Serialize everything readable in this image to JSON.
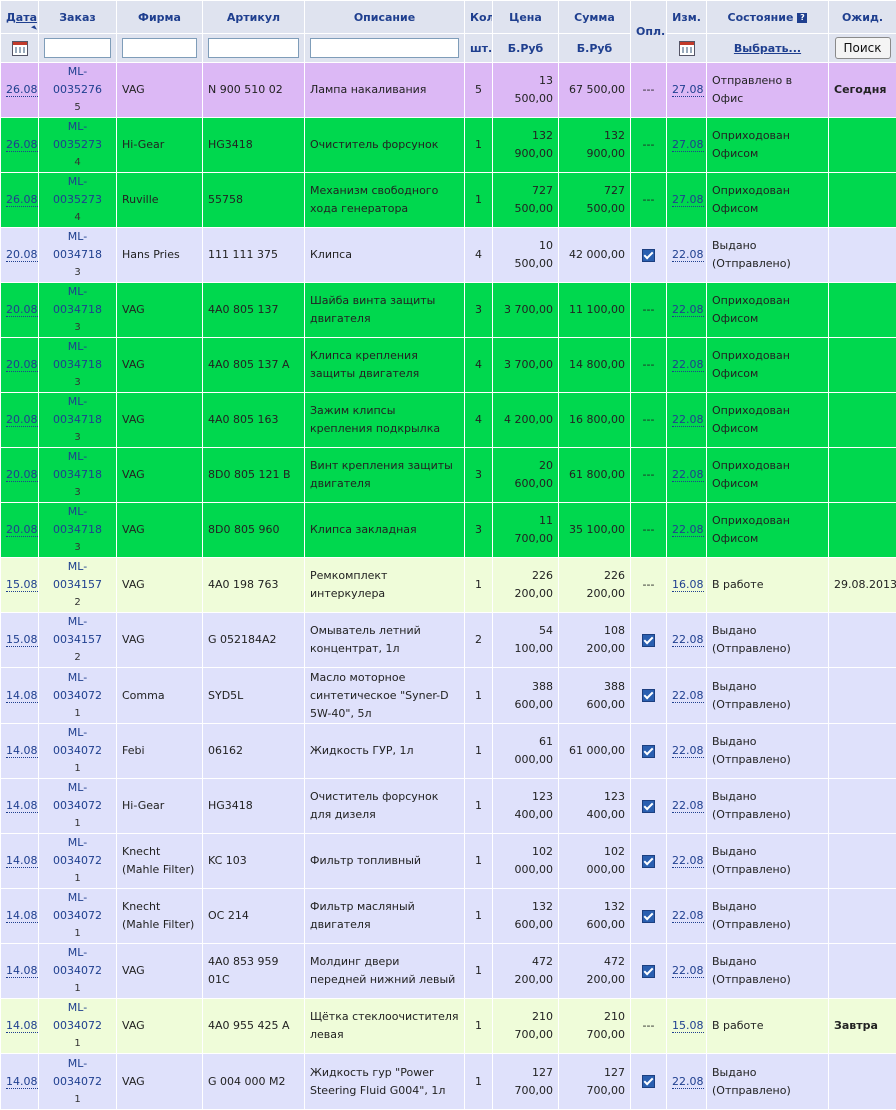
{
  "colors": {
    "header_bg": "#dfe3ef",
    "header_text": "#1f3f8f",
    "purple": "#dcb8f5",
    "green": "#00d84e",
    "lavender": "#dfe1fb",
    "pale": "#effcd9"
  },
  "header": {
    "date": "Дата",
    "order": "Заказ",
    "firm": "Фирма",
    "article": "Артикул",
    "description": "Описание",
    "qty": "Кол",
    "price": "Цена",
    "sum": "Сумма",
    "paid": "Опл.",
    "changed": "Изм.",
    "status": "Состояние",
    "expected": "Ожид.",
    "qty_unit": "шт.",
    "price_unit": "Б.Руб",
    "sum_unit": "Б.Руб",
    "status_choose": "Выбрать...",
    "search_button": "Поиск"
  },
  "filters": {
    "order": "",
    "firm": "",
    "article": "",
    "description": ""
  },
  "rows": [
    {
      "date": "26.08",
      "order": "ML-0035276",
      "suffix": "5",
      "firm": "VAG",
      "article": "N 900 510 02",
      "desc": "Лампа накаливания",
      "qty": "5",
      "price": "13 500,00",
      "sum": "67 500,00",
      "paid": "---",
      "changed": "27.08",
      "status": "Отправлено в Офис",
      "expected": "Сегодня",
      "color": "purple"
    },
    {
      "date": "26.08",
      "order": "ML-0035273",
      "suffix": "4",
      "firm": "Hi-Gear",
      "article": "HG3418",
      "desc": "Очиститель форсунок",
      "qty": "1",
      "price": "132 900,00",
      "sum": "132 900,00",
      "paid": "---",
      "changed": "27.08",
      "status": "Оприходован Офисом",
      "expected": "",
      "color": "green"
    },
    {
      "date": "26.08",
      "order": "ML-0035273",
      "suffix": "4",
      "firm": "Ruville",
      "article": "55758",
      "desc": "Механизм свободного хода генератора",
      "qty": "1",
      "price": "727 500,00",
      "sum": "727 500,00",
      "paid": "---",
      "changed": "27.08",
      "status": "Оприходован Офисом",
      "expected": "",
      "color": "green"
    },
    {
      "date": "20.08",
      "order": "ML-0034718",
      "suffix": "3",
      "firm": "Hans Pries",
      "article": "111 111 375",
      "desc": "Клипса",
      "qty": "4",
      "price": "10 500,00",
      "sum": "42 000,00",
      "paid": "check",
      "changed": "22.08",
      "status": "Выдано (Отправлено)",
      "expected": "",
      "color": "lav"
    },
    {
      "date": "20.08",
      "order": "ML-0034718",
      "suffix": "3",
      "firm": "VAG",
      "article": "4A0 805 137",
      "desc": "Шайба винта защиты двигателя",
      "qty": "3",
      "price": "3 700,00",
      "sum": "11 100,00",
      "paid": "---",
      "changed": "22.08",
      "status": "Оприходован Офисом",
      "expected": "",
      "color": "green"
    },
    {
      "date": "20.08",
      "order": "ML-0034718",
      "suffix": "3",
      "firm": "VAG",
      "article": "4A0 805 137 A",
      "desc": "Клипса крепления защиты двигателя",
      "qty": "4",
      "price": "3 700,00",
      "sum": "14 800,00",
      "paid": "---",
      "changed": "22.08",
      "status": "Оприходован Офисом",
      "expected": "",
      "color": "green"
    },
    {
      "date": "20.08",
      "order": "ML-0034718",
      "suffix": "3",
      "firm": "VAG",
      "article": "4A0 805 163",
      "desc": "Зажим клипсы крепления подкрылка",
      "qty": "4",
      "price": "4 200,00",
      "sum": "16 800,00",
      "paid": "---",
      "changed": "22.08",
      "status": "Оприходован Офисом",
      "expected": "",
      "color": "green"
    },
    {
      "date": "20.08",
      "order": "ML-0034718",
      "suffix": "3",
      "firm": "VAG",
      "article": "8D0 805 121 B",
      "desc": "Винт крепления защиты двигателя",
      "qty": "3",
      "price": "20 600,00",
      "sum": "61 800,00",
      "paid": "---",
      "changed": "22.08",
      "status": "Оприходован Офисом",
      "expected": "",
      "color": "green"
    },
    {
      "date": "20.08",
      "order": "ML-0034718",
      "suffix": "3",
      "firm": "VAG",
      "article": "8D0 805 960",
      "desc": "Клипса закладная",
      "qty": "3",
      "price": "11 700,00",
      "sum": "35 100,00",
      "paid": "---",
      "changed": "22.08",
      "status": "Оприходован Офисом",
      "expected": "",
      "color": "green"
    },
    {
      "date": "15.08",
      "order": "ML-0034157",
      "suffix": "2",
      "firm": "VAG",
      "article": "4A0 198 763",
      "desc": "Ремкомплект интеркулера",
      "qty": "1",
      "price": "226 200,00",
      "sum": "226 200,00",
      "paid": "---",
      "changed": "16.08",
      "status": "В работе",
      "expected": "29.08.2013",
      "color": "pale"
    },
    {
      "date": "15.08",
      "order": "ML-0034157",
      "suffix": "2",
      "firm": "VAG",
      "article": "G 052184A2",
      "desc": "Омыватель летний концентрат, 1л",
      "qty": "2",
      "price": "54 100,00",
      "sum": "108 200,00",
      "paid": "check",
      "changed": "22.08",
      "status": "Выдано (Отправлено)",
      "expected": "",
      "color": "lav"
    },
    {
      "date": "14.08",
      "order": "ML-0034072",
      "suffix": "1",
      "firm": "Comma",
      "article": "SYD5L",
      "desc": "Масло моторное синтетическое \"Syner-D 5W-40\", 5л",
      "qty": "1",
      "price": "388 600,00",
      "sum": "388 600,00",
      "paid": "check",
      "changed": "22.08",
      "status": "Выдано (Отправлено)",
      "expected": "",
      "color": "lav"
    },
    {
      "date": "14.08",
      "order": "ML-0034072",
      "suffix": "1",
      "firm": "Febi",
      "article": "06162",
      "desc": "Жидкость ГУР, 1л",
      "qty": "1",
      "price": "61 000,00",
      "sum": "61 000,00",
      "paid": "check",
      "changed": "22.08",
      "status": "Выдано (Отправлено)",
      "expected": "",
      "color": "lav"
    },
    {
      "date": "14.08",
      "order": "ML-0034072",
      "suffix": "1",
      "firm": "Hi-Gear",
      "article": "HG3418",
      "desc": "Очиститель форсунок для дизеля",
      "qty": "1",
      "price": "123 400,00",
      "sum": "123 400,00",
      "paid": "check",
      "changed": "22.08",
      "status": "Выдано (Отправлено)",
      "expected": "",
      "color": "lav"
    },
    {
      "date": "14.08",
      "order": "ML-0034072",
      "suffix": "1",
      "firm": "Knecht (Mahle Filter)",
      "article": "KC 103",
      "desc": "Фильтр топливный",
      "qty": "1",
      "price": "102 000,00",
      "sum": "102 000,00",
      "paid": "check",
      "changed": "22.08",
      "status": "Выдано (Отправлено)",
      "expected": "",
      "color": "lav"
    },
    {
      "date": "14.08",
      "order": "ML-0034072",
      "suffix": "1",
      "firm": "Knecht (Mahle Filter)",
      "article": "OC 214",
      "desc": "Фильтр масляный двигателя",
      "qty": "1",
      "price": "132 600,00",
      "sum": "132 600,00",
      "paid": "check",
      "changed": "22.08",
      "status": "Выдано (Отправлено)",
      "expected": "",
      "color": "lav"
    },
    {
      "date": "14.08",
      "order": "ML-0034072",
      "suffix": "1",
      "firm": "VAG",
      "article": "4A0 853 959 01C",
      "desc": "Молдинг двери передней нижний левый",
      "qty": "1",
      "price": "472 200,00",
      "sum": "472 200,00",
      "paid": "check",
      "changed": "22.08",
      "status": "Выдано (Отправлено)",
      "expected": "",
      "color": "lav"
    },
    {
      "date": "14.08",
      "order": "ML-0034072",
      "suffix": "1",
      "firm": "VAG",
      "article": "4A0 955 425 A",
      "desc": "Щётка стеклоочистителя левая",
      "qty": "1",
      "price": "210 700,00",
      "sum": "210 700,00",
      "paid": "---",
      "changed": "15.08",
      "status": "В работе",
      "expected": "Завтра",
      "color": "pale"
    },
    {
      "date": "14.08",
      "order": "ML-0034072",
      "suffix": "1",
      "firm": "VAG",
      "article": "G 004 000 M2",
      "desc": "Жидкость гур \"Power Steering Fluid G004\", 1л",
      "qty": "1",
      "price": "127 700,00",
      "sum": "127 700,00",
      "paid": "check",
      "changed": "22.08",
      "status": "Выдано (Отправлено)",
      "expected": "",
      "color": "lav"
    }
  ]
}
